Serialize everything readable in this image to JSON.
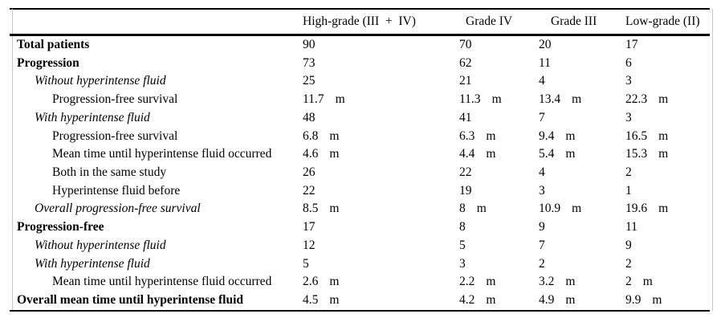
{
  "colors": {
    "background": "#ffffff",
    "text": "#000000",
    "rule": "#000000",
    "frame": "#c9c9c9"
  },
  "table": {
    "unit_meaning": "m",
    "columns": [
      {
        "label": "High-grade (III  +  IV)"
      },
      {
        "label": "Grade IV"
      },
      {
        "label": "Grade III"
      },
      {
        "label": "Low-grade (II)"
      }
    ],
    "rows": [
      {
        "label": "Total patients",
        "style": "bold",
        "indent": 0,
        "cells": [
          {
            "v": "90",
            "u": ""
          },
          {
            "v": "70",
            "u": ""
          },
          {
            "v": "20",
            "u": ""
          },
          {
            "v": "17",
            "u": ""
          }
        ]
      },
      {
        "label": "Progression",
        "style": "bold",
        "indent": 0,
        "cells": [
          {
            "v": "73",
            "u": ""
          },
          {
            "v": "62",
            "u": ""
          },
          {
            "v": "11",
            "u": ""
          },
          {
            "v": "6",
            "u": ""
          }
        ]
      },
      {
        "label": "Without hyperintense fluid",
        "style": "italic",
        "indent": 1,
        "cells": [
          {
            "v": "25",
            "u": ""
          },
          {
            "v": "21",
            "u": ""
          },
          {
            "v": "4",
            "u": ""
          },
          {
            "v": "3",
            "u": ""
          }
        ]
      },
      {
        "label": "Progression-free survival",
        "style": "normal",
        "indent": 2,
        "cells": [
          {
            "v": "11.7",
            "u": "m"
          },
          {
            "v": "11.3",
            "u": "m"
          },
          {
            "v": "13.4",
            "u": "m"
          },
          {
            "v": "22.3",
            "u": "m"
          }
        ]
      },
      {
        "label": "With hyperintense fluid",
        "style": "italic",
        "indent": 1,
        "cells": [
          {
            "v": "48",
            "u": ""
          },
          {
            "v": "41",
            "u": ""
          },
          {
            "v": "7",
            "u": ""
          },
          {
            "v": "3",
            "u": ""
          }
        ]
      },
      {
        "label": "Progression-free survival",
        "style": "normal",
        "indent": 2,
        "cells": [
          {
            "v": "6.8",
            "u": "m"
          },
          {
            "v": "6.3",
            "u": "m"
          },
          {
            "v": "9.4",
            "u": "m"
          },
          {
            "v": "16.5",
            "u": "m"
          }
        ]
      },
      {
        "label": "Mean time until hyperintense fluid occurred",
        "style": "normal",
        "indent": 2,
        "cells": [
          {
            "v": "4.6",
            "u": "m"
          },
          {
            "v": "4.4",
            "u": "m"
          },
          {
            "v": "5.4",
            "u": "m"
          },
          {
            "v": "15.3",
            "u": "m"
          }
        ]
      },
      {
        "label": "Both in the same study",
        "style": "normal",
        "indent": 2,
        "cells": [
          {
            "v": "26",
            "u": ""
          },
          {
            "v": "22",
            "u": ""
          },
          {
            "v": "4",
            "u": ""
          },
          {
            "v": "2",
            "u": ""
          }
        ]
      },
      {
        "label": "Hyperintense fluid before",
        "style": "normal",
        "indent": 2,
        "cells": [
          {
            "v": "22",
            "u": ""
          },
          {
            "v": "19",
            "u": ""
          },
          {
            "v": "3",
            "u": ""
          },
          {
            "v": "1",
            "u": ""
          }
        ]
      },
      {
        "label": "Overall progression-free survival",
        "style": "italic",
        "indent": 1,
        "cells": [
          {
            "v": "8.5",
            "u": "m"
          },
          {
            "v": "8",
            "u": "m"
          },
          {
            "v": "10.9",
            "u": "m"
          },
          {
            "v": "19.6",
            "u": "m"
          }
        ]
      },
      {
        "label": "Progression-free",
        "style": "bold",
        "indent": 0,
        "cells": [
          {
            "v": "17",
            "u": ""
          },
          {
            "v": "8",
            "u": ""
          },
          {
            "v": "9",
            "u": ""
          },
          {
            "v": "11",
            "u": ""
          }
        ]
      },
      {
        "label": "Without hyperintense fluid",
        "style": "italic",
        "indent": 1,
        "cells": [
          {
            "v": "12",
            "u": ""
          },
          {
            "v": "5",
            "u": ""
          },
          {
            "v": "7",
            "u": ""
          },
          {
            "v": "9",
            "u": ""
          }
        ]
      },
      {
        "label": "With hyperintense fluid",
        "style": "italic",
        "indent": 1,
        "cells": [
          {
            "v": "5",
            "u": ""
          },
          {
            "v": "3",
            "u": ""
          },
          {
            "v": "2",
            "u": ""
          },
          {
            "v": "2",
            "u": ""
          }
        ]
      },
      {
        "label": "Mean time until hyperintense fluid occurred",
        "style": "normal",
        "indent": 2,
        "cells": [
          {
            "v": "2.6",
            "u": "m"
          },
          {
            "v": "2.2",
            "u": "m"
          },
          {
            "v": "3.2",
            "u": "m"
          },
          {
            "v": "2",
            "u": "m"
          }
        ]
      },
      {
        "label": "Overall mean time until hyperintense fluid",
        "style": "bold",
        "indent": 0,
        "cells": [
          {
            "v": "4.5",
            "u": "m"
          },
          {
            "v": "4.2",
            "u": "m"
          },
          {
            "v": "4.9",
            "u": "m"
          },
          {
            "v": "9.9",
            "u": "m"
          }
        ]
      }
    ]
  }
}
